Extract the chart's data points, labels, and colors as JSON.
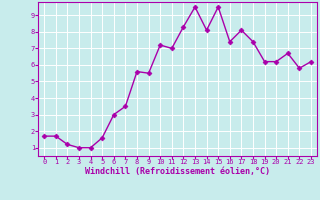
{
  "x": [
    0,
    1,
    2,
    3,
    4,
    5,
    6,
    7,
    8,
    9,
    10,
    11,
    12,
    13,
    14,
    15,
    16,
    17,
    18,
    19,
    20,
    21,
    22,
    23
  ],
  "y": [
    1.7,
    1.7,
    1.2,
    1.0,
    1.0,
    1.6,
    3.0,
    3.5,
    5.6,
    5.5,
    7.2,
    7.0,
    8.3,
    9.5,
    8.1,
    9.5,
    7.4,
    8.1,
    7.4,
    6.2,
    6.2,
    6.7,
    5.8,
    6.2
  ],
  "line_color": "#aa00aa",
  "marker": "D",
  "markersize": 2.5,
  "linewidth": 1.0,
  "bg_color": "#c8ecec",
  "grid_color": "#ffffff",
  "xlabel": "Windchill (Refroidissement éolien,°C)",
  "xlabel_color": "#aa00aa",
  "tick_color": "#aa00aa",
  "spine_color": "#aa00aa",
  "ylim": [
    0.5,
    9.8
  ],
  "xlim": [
    -0.5,
    23.5
  ],
  "yticks": [
    1,
    2,
    3,
    4,
    5,
    6,
    7,
    8,
    9
  ],
  "xticks": [
    0,
    1,
    2,
    3,
    4,
    5,
    6,
    7,
    8,
    9,
    10,
    11,
    12,
    13,
    14,
    15,
    16,
    17,
    18,
    19,
    20,
    21,
    22,
    23
  ],
  "tick_fontsize": 5.0,
  "xlabel_fontsize": 6.0
}
